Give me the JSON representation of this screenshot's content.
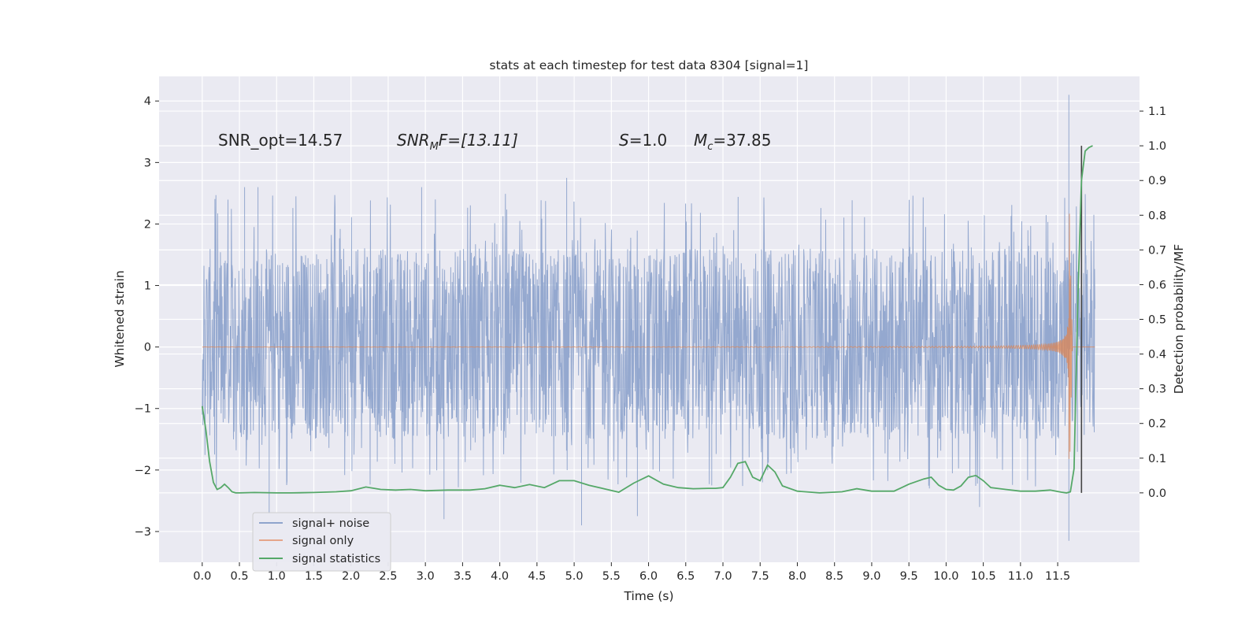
{
  "chart_data": {
    "type": "line",
    "title": "stats at each timestep for test data 8304 [signal=1]",
    "xlabel": "Time (s)",
    "ylabel_left": "Whitened strain",
    "ylabel_right": "Detection probability/MF",
    "xlim": [
      -0.58,
      12.6
    ],
    "ylim_left": [
      -3.5,
      4.4
    ],
    "ylim_right": [
      -0.2,
      1.2
    ],
    "x_ticks": [
      "0.0",
      "0.5",
      "1.0",
      "1.5",
      "2.0",
      "2.5",
      "3.0",
      "3.5",
      "4.0",
      "4.5",
      "5.0",
      "5.5",
      "6.0",
      "6.5",
      "7.0",
      "7.5",
      "8.0",
      "8.5",
      "9.0",
      "9.5",
      "10.0",
      "10.5",
      "11.0",
      "11.5"
    ],
    "y_left_ticks": [
      "−3",
      "−2",
      "−1",
      "0",
      "1",
      "2",
      "3",
      "4"
    ],
    "y_right_ticks": [
      "0.0",
      "0.1",
      "0.2",
      "0.3",
      "0.4",
      "0.5",
      "0.6",
      "0.7",
      "0.8",
      "0.9",
      "1.0",
      "1.1"
    ],
    "grid": true,
    "annotations": {
      "snr_opt": "SNR_opt=14.57",
      "snr_mf_label": "SNR",
      "snr_mf_sub": "M",
      "snr_mf_value": "F=[13.11]",
      "s_label": "S",
      "s_value": "=1.0",
      "mc_label": "M",
      "mc_sub": "c",
      "mc_value": "=37.85"
    },
    "legend": {
      "position": "lower-left",
      "entries": [
        "signal+ noise",
        "signal only",
        "signal statistics"
      ]
    },
    "colors": {
      "noise": "#8fa4cc",
      "signal": "#dd8452",
      "stats": "#55a868",
      "vline": "#444444",
      "background": "#eaeaf2"
    },
    "series": [
      {
        "name": "signal+ noise",
        "axis": "left",
        "duration": 12.0,
        "typical_range": [
          -1.5,
          1.6
        ],
        "extremes": [
          {
            "x": 0.57,
            "y": 2.6
          },
          {
            "x": 0.75,
            "y": 2.6
          },
          {
            "x": 0.9,
            "y": -2.7
          },
          {
            "x": 2.95,
            "y": 2.6
          },
          {
            "x": 3.25,
            "y": -2.8
          },
          {
            "x": 4.9,
            "y": 2.75
          },
          {
            "x": 5.1,
            "y": -2.9
          },
          {
            "x": 5.85,
            "y": -2.75
          },
          {
            "x": 6.85,
            "y": -2.25
          },
          {
            "x": 10.45,
            "y": -2.6
          },
          {
            "x": 11.65,
            "y": 4.1
          },
          {
            "x": 11.65,
            "y": -3.15
          }
        ]
      },
      {
        "name": "signal only",
        "axis": "left",
        "peak_time": 11.65,
        "peak_amplitude": 2.6
      },
      {
        "name": "signal statistics",
        "axis": "right",
        "x": [
          0.0,
          0.05,
          0.1,
          0.15,
          0.2,
          0.25,
          0.3,
          0.35,
          0.4,
          0.45,
          0.5,
          0.7,
          1.0,
          1.2,
          1.5,
          1.8,
          2.0,
          2.2,
          2.4,
          2.6,
          2.8,
          3.0,
          3.3,
          3.6,
          3.8,
          4.0,
          4.2,
          4.4,
          4.6,
          4.8,
          5.0,
          5.2,
          5.4,
          5.6,
          5.8,
          6.0,
          6.2,
          6.4,
          6.6,
          6.8,
          6.9,
          7.0,
          7.1,
          7.2,
          7.3,
          7.4,
          7.5,
          7.6,
          7.7,
          7.8,
          8.0,
          8.3,
          8.6,
          8.8,
          9.0,
          9.3,
          9.5,
          9.7,
          9.8,
          9.9,
          10.0,
          10.1,
          10.2,
          10.3,
          10.4,
          10.5,
          10.6,
          10.8,
          11.0,
          11.2,
          11.4,
          11.5,
          11.55,
          11.62,
          11.67,
          11.72,
          11.77,
          11.82,
          11.87,
          11.92,
          11.97
        ],
        "y": [
          0.25,
          0.18,
          0.09,
          0.03,
          0.01,
          0.015,
          0.025,
          0.015,
          0.003,
          0.0,
          0.0,
          0.001,
          0.0,
          0.0,
          0.001,
          0.003,
          0.006,
          0.017,
          0.01,
          0.008,
          0.01,
          0.006,
          0.008,
          0.008,
          0.012,
          0.022,
          0.015,
          0.024,
          0.015,
          0.035,
          0.035,
          0.022,
          0.012,
          0.002,
          0.028,
          0.049,
          0.025,
          0.015,
          0.012,
          0.013,
          0.013,
          0.015,
          0.045,
          0.085,
          0.09,
          0.045,
          0.035,
          0.08,
          0.06,
          0.02,
          0.005,
          0.0,
          0.003,
          0.012,
          0.005,
          0.005,
          0.025,
          0.04,
          0.045,
          0.022,
          0.01,
          0.008,
          0.02,
          0.045,
          0.05,
          0.035,
          0.015,
          0.01,
          0.005,
          0.005,
          0.008,
          0.004,
          0.002,
          0.0,
          0.003,
          0.07,
          0.55,
          0.9,
          0.985,
          0.995,
          1.0
        ]
      }
    ],
    "vertical_line_x": 11.82
  }
}
